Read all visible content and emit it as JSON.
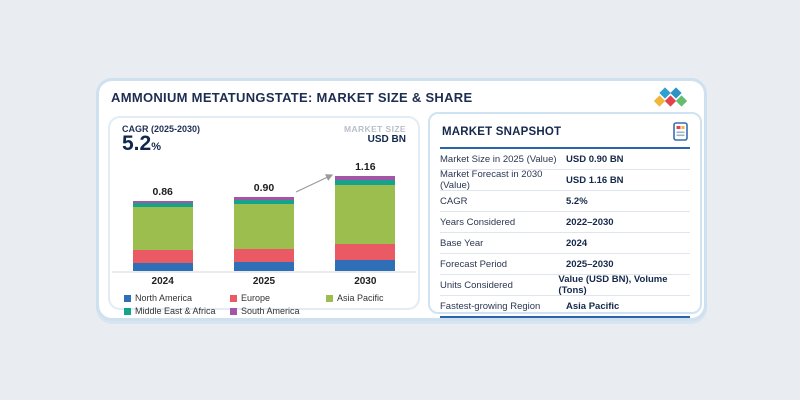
{
  "card": {
    "title": "AMMONIUM METATUNGSTATE: MARKET SIZE & SHARE"
  },
  "logo": {
    "diamond_colors": [
      "#f0b53a",
      "#2ea0d1",
      "#e2414d",
      "#2b93c6",
      "#64bd6d"
    ]
  },
  "chart_panel": {
    "cagr_label": "CAGR (2025-2030)",
    "cagr_value": "5.2",
    "cagr_unit": "%",
    "market_size_label": "MARKET SIZE",
    "market_size_unit": "USD BN"
  },
  "chart_data": {
    "type": "bar",
    "stacked": true,
    "unit": "USD BN",
    "categories": [
      "2024",
      "2025",
      "2030"
    ],
    "totals": [
      0.86,
      0.9,
      1.16
    ],
    "total_labels": [
      "0.86",
      "0.90",
      "1.16"
    ],
    "series": [
      {
        "name": "North America",
        "color": "#2f6fb7",
        "values": [
          0.1,
          0.115,
          0.135
        ]
      },
      {
        "name": "Europe",
        "color": "#ea5a64",
        "values": [
          0.155,
          0.15,
          0.2
        ]
      },
      {
        "name": "Asia Pacific",
        "color": "#9cbe4e",
        "values": [
          0.525,
          0.55,
          0.71
        ]
      },
      {
        "name": "Middle East & Africa",
        "color": "#16a28b",
        "values": [
          0.045,
          0.05,
          0.07
        ]
      },
      {
        "name": "South America",
        "color": "#a455a6",
        "values": [
          0.035,
          0.035,
          0.045
        ]
      }
    ],
    "legend_position": "bottom",
    "annotation_arrow": {
      "from_category": "2025",
      "to_category": "2030",
      "color": "#9a9a9a"
    }
  },
  "snapshot": {
    "title": "MARKET SNAPSHOT",
    "rows": [
      {
        "label": "Market Size in 2025 (Value)",
        "value": "USD 0.90 BN"
      },
      {
        "label": "Market Forecast in 2030 (Value)",
        "value": "USD 1.16 BN"
      },
      {
        "label": "CAGR",
        "value": "5.2%"
      },
      {
        "label": "Years Considered",
        "value": "2022–2030"
      },
      {
        "label": "Base Year",
        "value": "2024"
      },
      {
        "label": "Forecast Period",
        "value": "2025–2030"
      },
      {
        "label": "Units Considered",
        "value": "Value (USD BN), Volume (Tons)"
      },
      {
        "label": "Fastest-growing Region",
        "value": "Asia Pacific"
      }
    ]
  }
}
